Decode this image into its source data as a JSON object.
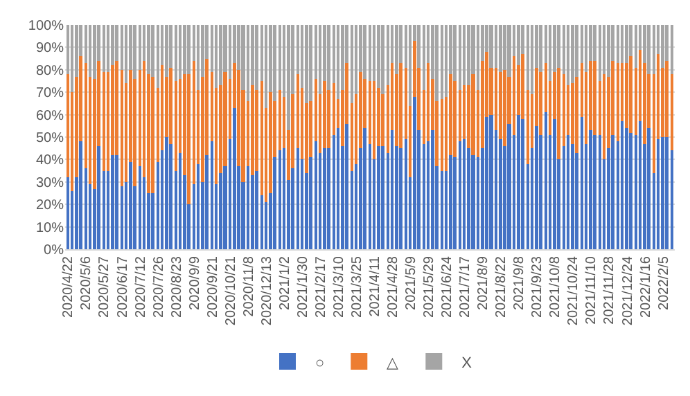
{
  "chart_data": {
    "type": "bar",
    "stacked": true,
    "grid": "y",
    "legend": "bottom",
    "categories": [
      "2020/4/22",
      null,
      null,
      null,
      "2020/5/6",
      null,
      null,
      null,
      "2020/5/27",
      null,
      null,
      null,
      "2020/6/17",
      null,
      null,
      null,
      "2020/7/12",
      null,
      null,
      null,
      "2020/7/26",
      null,
      null,
      null,
      "2020/8/23",
      null,
      null,
      null,
      "2020/9/9",
      null,
      null,
      null,
      "2020/9/21",
      null,
      null,
      null,
      "2020/10/21",
      null,
      null,
      null,
      "2020/11/8",
      null,
      null,
      null,
      "2020/12/13",
      null,
      null,
      null,
      "2021/1/2",
      null,
      null,
      null,
      "2021/1/30",
      null,
      null,
      null,
      "2021/2/17",
      null,
      null,
      null,
      "2021/3/10",
      null,
      null,
      null,
      "2021/3/25",
      null,
      null,
      null,
      "2021/4/11",
      null,
      null,
      null,
      "2021/4/28",
      null,
      null,
      null,
      "2021/5/9",
      null,
      null,
      null,
      "2021/5/29",
      null,
      null,
      null,
      "2021/6/24",
      null,
      null,
      null,
      "2021/7/17",
      null,
      null,
      null,
      "2021/8/9",
      null,
      null,
      null,
      "2021/8/22",
      null,
      null,
      null,
      "2021/9/8",
      null,
      null,
      null,
      "2021/9/23",
      null,
      null,
      null,
      "2021/10/8",
      null,
      null,
      null,
      "2021/10/24",
      null,
      null,
      null,
      "2021/11/10",
      null,
      null,
      null,
      "2021/11/28",
      null,
      null,
      null,
      "2021/12/24",
      null,
      null,
      null,
      "2022/1/16",
      null,
      null,
      null,
      "2022/2/5",
      null,
      null
    ],
    "ylim": [
      0,
      100
    ],
    "yticks": [
      {
        "value": 0,
        "label": "0%"
      },
      {
        "value": 10,
        "label": "10%"
      },
      {
        "value": 20,
        "label": "20%"
      },
      {
        "value": 30,
        "label": "30%"
      },
      {
        "value": 40,
        "label": "40%"
      },
      {
        "value": 50,
        "label": "50%"
      },
      {
        "value": 60,
        "label": "60%"
      },
      {
        "value": 70,
        "label": "70%"
      },
      {
        "value": 80,
        "label": "80%"
      },
      {
        "value": 90,
        "label": "90%"
      },
      {
        "value": 100,
        "label": "100%"
      }
    ],
    "series": [
      {
        "name": "○",
        "color": "#4472c4",
        "values": [
          32,
          26,
          32,
          48,
          36,
          29,
          27,
          46,
          35,
          35,
          42,
          42,
          28,
          30,
          39,
          28,
          37,
          32,
          25,
          25,
          39,
          44,
          50,
          47,
          35,
          43,
          33,
          20,
          29,
          38,
          30,
          42,
          48,
          29,
          34,
          37,
          49,
          63,
          37,
          30,
          37,
          33,
          35,
          24,
          21,
          25,
          41,
          44,
          45,
          31,
          36,
          45,
          40,
          34,
          41,
          48,
          43,
          45,
          45,
          51,
          54,
          46,
          56,
          35,
          38,
          45,
          54,
          47,
          40,
          46,
          46,
          43,
          53,
          46,
          45,
          49,
          32,
          68,
          53,
          47,
          48,
          53,
          37,
          35,
          35,
          42,
          41,
          48,
          49,
          45,
          42,
          41,
          45,
          59,
          60,
          53,
          49,
          46,
          56,
          51,
          60,
          58,
          38,
          45,
          55,
          51,
          61,
          51,
          58,
          40,
          46,
          51,
          47,
          43,
          59,
          47,
          53,
          51,
          51,
          40,
          45,
          51,
          48,
          57,
          54,
          52,
          51,
          57,
          47,
          54,
          34,
          49,
          50,
          50,
          44
        ]
      },
      {
        "name": "△",
        "color": "#ed7d31",
        "values": [
          46,
          44,
          45,
          38,
          47,
          48,
          49,
          38,
          44,
          44,
          40,
          42,
          52,
          44,
          41,
          48,
          43,
          52,
          53,
          52,
          33,
          38,
          27,
          34,
          40,
          33,
          45,
          58,
          55,
          33,
          47,
          43,
          31,
          43,
          39,
          42,
          27,
          20,
          43,
          41,
          29,
          40,
          36,
          51,
          42,
          45,
          25,
          27,
          23,
          22,
          33,
          33,
          32,
          31,
          25,
          28,
          26,
          30,
          26,
          23,
          13,
          25,
          27,
          30,
          31,
          34,
          22,
          28,
          35,
          26,
          23,
          30,
          30,
          32,
          38,
          32,
          32,
          25,
          28,
          24,
          35,
          23,
          29,
          32,
          33,
          36,
          34,
          23,
          24,
          28,
          36,
          30,
          39,
          29,
          21,
          28,
          30,
          34,
          21,
          35,
          22,
          29,
          33,
          24,
          26,
          28,
          22,
          24,
          21,
          41,
          32,
          22,
          27,
          34,
          24,
          32,
          31,
          33,
          24,
          38,
          32,
          33,
          35,
          26,
          29,
          34,
          30,
          32,
          36,
          24,
          44,
          38,
          31,
          34,
          34
        ]
      },
      {
        "name": "X",
        "color": "#a5a5a5",
        "values": [
          22,
          30,
          23,
          14,
          17,
          23,
          24,
          16,
          21,
          21,
          18,
          16,
          20,
          26,
          20,
          24,
          20,
          16,
          22,
          23,
          28,
          18,
          23,
          19,
          25,
          24,
          22,
          22,
          16,
          29,
          23,
          15,
          21,
          28,
          27,
          21,
          24,
          17,
          20,
          29,
          34,
          27,
          29,
          25,
          37,
          30,
          34,
          29,
          32,
          47,
          31,
          22,
          28,
          35,
          34,
          24,
          31,
          25,
          29,
          26,
          33,
          29,
          17,
          35,
          31,
          21,
          24,
          25,
          25,
          28,
          31,
          27,
          17,
          22,
          17,
          19,
          36,
          7,
          19,
          29,
          17,
          24,
          34,
          33,
          32,
          22,
          25,
          29,
          27,
          27,
          22,
          29,
          16,
          12,
          19,
          19,
          21,
          20,
          23,
          14,
          18,
          13,
          29,
          31,
          19,
          21,
          17,
          25,
          21,
          19,
          22,
          27,
          26,
          23,
          17,
          21,
          16,
          16,
          25,
          22,
          23,
          16,
          17,
          17,
          17,
          14,
          19,
          11,
          17,
          22,
          22,
          13,
          19,
          16,
          22
        ]
      }
    ]
  }
}
